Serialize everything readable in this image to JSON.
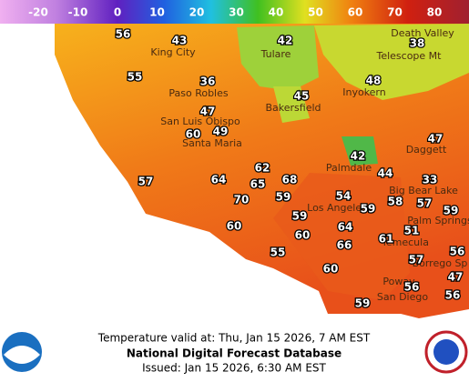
{
  "legend": {
    "labels": [
      -20,
      -10,
      0,
      10,
      20,
      30,
      40,
      50,
      60,
      70,
      80
    ]
  },
  "cities": [
    "King City",
    "Tulare",
    "Death Valley",
    "Telescope Mt",
    "Paso Robles",
    "Inyokern",
    "Bakersfield",
    "San Luis Obispo",
    "Santa Maria",
    "Daggett",
    "Palmdale",
    "Big Bear Lake",
    "Los Angeles",
    "Palm Springs",
    "Temecula",
    "Borrego Sp",
    "Poway",
    "San Diego"
  ],
  "temperatures": [
    56,
    43,
    42,
    38,
    55,
    36,
    48,
    45,
    47,
    60,
    49,
    47,
    42,
    62,
    44,
    68,
    57,
    64,
    65,
    33,
    70,
    59,
    54,
    58,
    57,
    59,
    59,
    59,
    64,
    51,
    60,
    60,
    66,
    61,
    56,
    55,
    57,
    60,
    47,
    56,
    56,
    59
  ],
  "footer": {
    "valid": "Temperature valid at: Thu, Jan 15 2026, 7 AM EST",
    "title": "National Digital Forecast Database",
    "issued": "Issued: Jan 15 2026, 6:30 AM EST"
  }
}
